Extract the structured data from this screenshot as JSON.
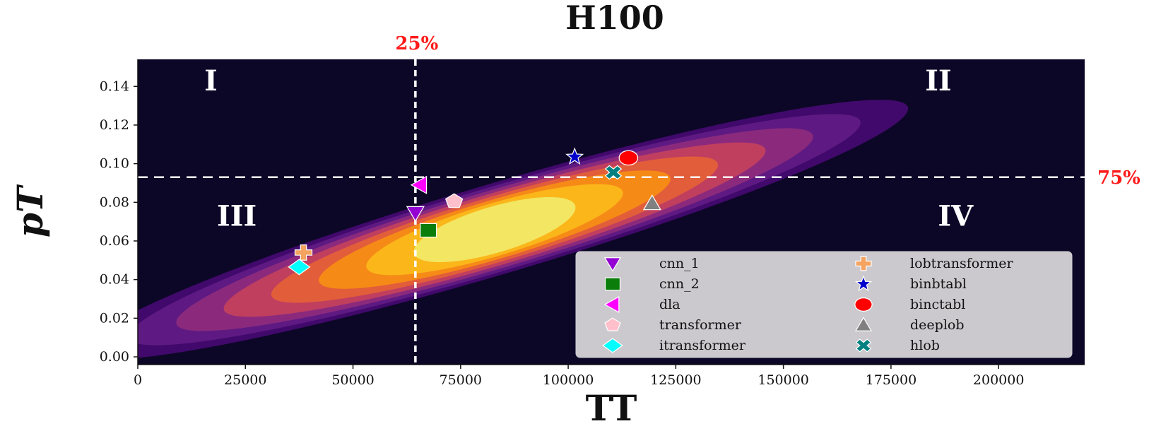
{
  "chart_data": {
    "type": "scatter",
    "title": "H100",
    "xlabel": "TT",
    "ylabel": "pT",
    "xlim": [
      0,
      220000
    ],
    "ylim": [
      -0.004,
      0.154
    ],
    "xticks": [
      0,
      25000,
      50000,
      75000,
      100000,
      125000,
      150000,
      175000,
      200000
    ],
    "yticks": [
      "0.00",
      "0.02",
      "0.04",
      "0.06",
      "0.08",
      "0.10",
      "0.12",
      "0.14"
    ],
    "background_color": "#0c0727",
    "density_colormap": [
      "#41096b",
      "#5e1a82",
      "#8b2a7d",
      "#c03f5f",
      "#e25d3a",
      "#f68a17",
      "#fbb61a",
      "#f2e663"
    ],
    "quadrants": [
      {
        "label": "I",
        "x": 17000,
        "y": 0.143
      },
      {
        "label": "II",
        "x": 186000,
        "y": 0.143
      },
      {
        "label": "III",
        "x": 23000,
        "y": 0.073
      },
      {
        "label": "IV",
        "x": 190000,
        "y": 0.073
      }
    ],
    "thresholds": {
      "vertical": {
        "x": 64500,
        "label": "25%"
      },
      "horizontal": {
        "y": 0.093,
        "label": "75%"
      },
      "color": "#ff1a1a"
    },
    "series": [
      {
        "name": "cnn_1",
        "marker": "triangle-down",
        "color": "#9400d3",
        "x": 64500,
        "y": 0.0745
      },
      {
        "name": "cnn_2",
        "marker": "square",
        "color": "#0a7d0a",
        "x": 67500,
        "y": 0.0655
      },
      {
        "name": "dla",
        "marker": "triangle-left",
        "color": "#ff00ff",
        "x": 65500,
        "y": 0.089
      },
      {
        "name": "transformer",
        "marker": "pentagon",
        "color": "#ffc0cb",
        "x": 73500,
        "y": 0.0805
      },
      {
        "name": "itransformer",
        "marker": "diamond",
        "color": "#00ffff",
        "x": 37500,
        "y": 0.0465
      },
      {
        "name": "lobtransformer",
        "marker": "plus",
        "color": "#f4a460",
        "x": 38500,
        "y": 0.054
      },
      {
        "name": "binbtabl",
        "marker": "star",
        "color": "#0000cd",
        "x": 101500,
        "y": 0.1035
      },
      {
        "name": "binctabl",
        "marker": "circle",
        "color": "#ff0000",
        "x": 114000,
        "y": 0.103
      },
      {
        "name": "deeplob",
        "marker": "triangle-up",
        "color": "#808080",
        "x": 119500,
        "y": 0.0795
      },
      {
        "name": "hlob",
        "marker": "x",
        "color": "#008080",
        "x": 110500,
        "y": 0.0955
      }
    ],
    "legend_position": "lower-right",
    "grid": false
  }
}
